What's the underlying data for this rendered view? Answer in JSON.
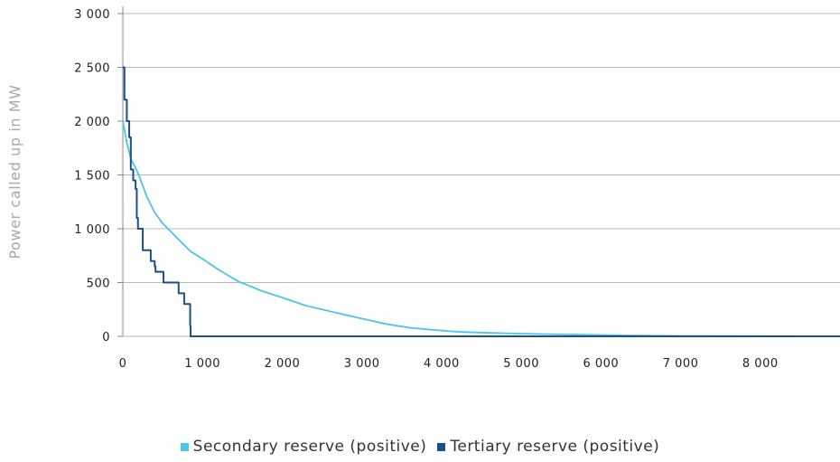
{
  "chart_data": {
    "type": "line",
    "title": "",
    "xlabel": "",
    "ylabel": "Power called up in MW",
    "xlim": [
      0,
      9000
    ],
    "ylim": [
      0,
      3000
    ],
    "x_ticks": [
      {
        "value": 0,
        "label": "0"
      },
      {
        "value": 1000,
        "label": "1 000"
      },
      {
        "value": 2000,
        "label": "2 000"
      },
      {
        "value": 3000,
        "label": "3 000"
      },
      {
        "value": 4000,
        "label": "4 000"
      },
      {
        "value": 5000,
        "label": "5 000"
      },
      {
        "value": 6000,
        "label": "6 000"
      },
      {
        "value": 7000,
        "label": "7 000"
      },
      {
        "value": 8000,
        "label": "8 000"
      }
    ],
    "y_ticks": [
      {
        "value": 0,
        "label": "0"
      },
      {
        "value": 500,
        "label": "500"
      },
      {
        "value": 1000,
        "label": "1 000"
      },
      {
        "value": 1500,
        "label": "1 500"
      },
      {
        "value": 2000,
        "label": "2 000"
      },
      {
        "value": 2500,
        "label": "2 500"
      },
      {
        "value": 3000,
        "label": "3 000"
      }
    ],
    "grid": "horizontal",
    "legend_position": "bottom",
    "series": [
      {
        "name": "Secondary reserve (positive)",
        "color": "#4dc4ec",
        "points": [
          [
            0,
            2000
          ],
          [
            50,
            1800
          ],
          [
            100,
            1650
          ],
          [
            150,
            1580
          ],
          [
            200,
            1500
          ],
          [
            300,
            1300
          ],
          [
            400,
            1150
          ],
          [
            500,
            1050
          ],
          [
            700,
            900
          ],
          [
            850,
            790
          ],
          [
            1000,
            720
          ],
          [
            1200,
            620
          ],
          [
            1450,
            510
          ],
          [
            1750,
            420
          ],
          [
            2000,
            360
          ],
          [
            2300,
            285
          ],
          [
            2700,
            215
          ],
          [
            3000,
            165
          ],
          [
            3300,
            115
          ],
          [
            3600,
            80
          ],
          [
            3900,
            60
          ],
          [
            4200,
            42
          ],
          [
            4600,
            32
          ],
          [
            5000,
            25
          ],
          [
            5500,
            18
          ],
          [
            6000,
            12
          ],
          [
            6300,
            8
          ],
          [
            7000,
            4
          ],
          [
            8000,
            2
          ],
          [
            9000,
            0
          ]
        ]
      },
      {
        "name": "Tertiary reserve (positive)",
        "color": "#1d4f8b",
        "step": true,
        "points": [
          [
            0,
            2500
          ],
          [
            20,
            2200
          ],
          [
            50,
            2000
          ],
          [
            80,
            1850
          ],
          [
            100,
            1550
          ],
          [
            130,
            1450
          ],
          [
            160,
            1370
          ],
          [
            175,
            1100
          ],
          [
            190,
            1000
          ],
          [
            240,
            1000
          ],
          [
            250,
            800
          ],
          [
            340,
            800
          ],
          [
            350,
            700
          ],
          [
            400,
            650
          ],
          [
            410,
            600
          ],
          [
            500,
            600
          ],
          [
            510,
            500
          ],
          [
            690,
            500
          ],
          [
            700,
            400
          ],
          [
            760,
            400
          ],
          [
            770,
            300
          ],
          [
            840,
            300
          ],
          [
            845,
            100
          ],
          [
            850,
            0
          ],
          [
            9000,
            0
          ]
        ]
      }
    ]
  }
}
